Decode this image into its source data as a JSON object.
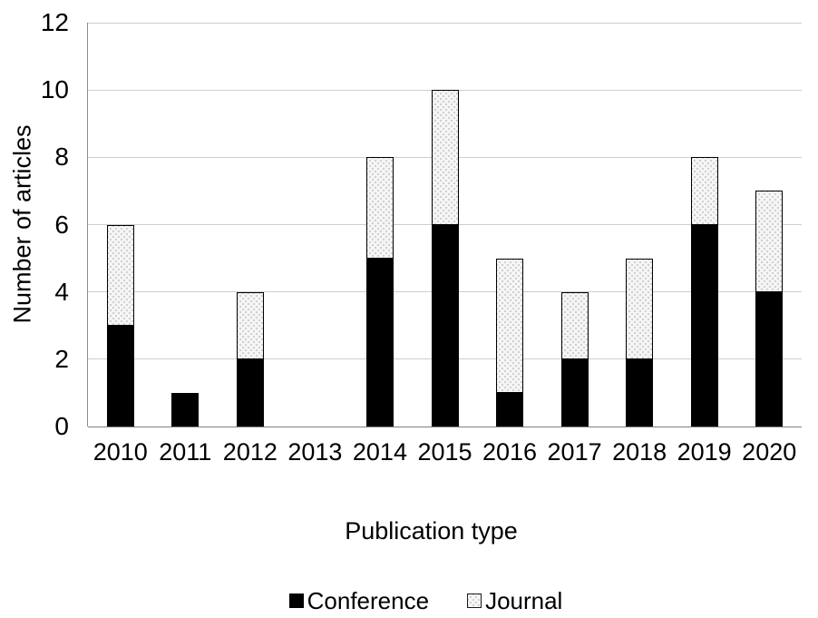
{
  "chart_data": {
    "type": "bar",
    "stacked": true,
    "categories": [
      "2010",
      "2011",
      "2012",
      "2013",
      "2014",
      "2015",
      "2016",
      "2017",
      "2018",
      "2019",
      "2020"
    ],
    "series": [
      {
        "name": "Conference",
        "values": [
          3,
          1,
          2,
          0,
          5,
          6,
          1,
          2,
          2,
          6,
          4
        ],
        "color": "#000000",
        "pattern": "solid"
      },
      {
        "name": "Journal",
        "values": [
          3,
          0,
          2,
          0,
          3,
          4,
          4,
          2,
          3,
          2,
          3
        ],
        "color": "#f5f5f5",
        "pattern": "dotted"
      }
    ],
    "title": "",
    "xlabel": "Publication type",
    "ylabel": "Number of articles",
    "ylim": [
      0,
      12
    ],
    "ytick_interval": 2,
    "yticks": [
      0,
      2,
      4,
      6,
      8,
      10,
      12
    ],
    "grid": true,
    "legend_position": "bottom",
    "colors": {
      "bar_border": "#000000",
      "gridline": "#cdcdcd",
      "axis_line": "#7f7f7f",
      "background": "#ffffff"
    }
  }
}
